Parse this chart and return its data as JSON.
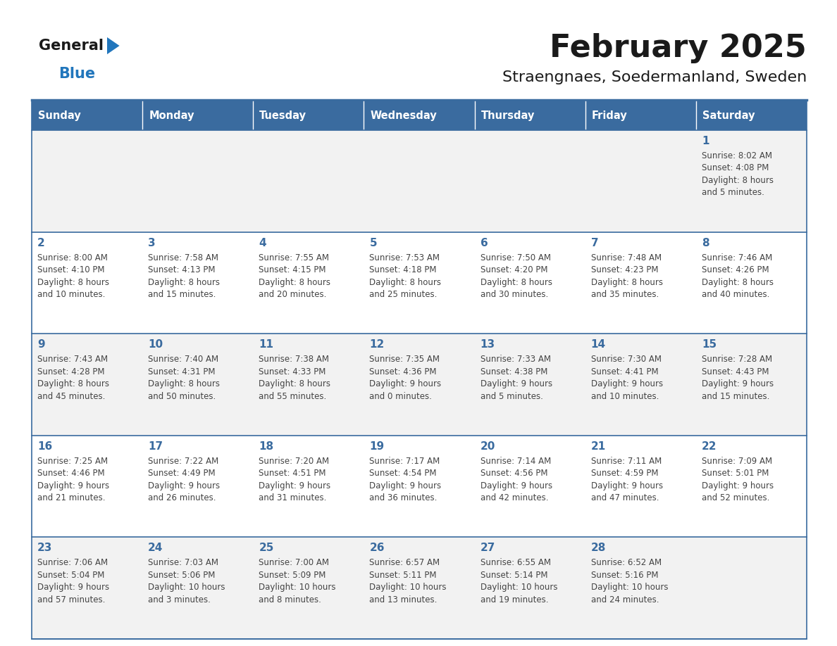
{
  "title": "February 2025",
  "subtitle": "Straengnaes, Soedermanland, Sweden",
  "days_of_week": [
    "Sunday",
    "Monday",
    "Tuesday",
    "Wednesday",
    "Thursday",
    "Friday",
    "Saturday"
  ],
  "header_bg_color": "#3a6b9f",
  "header_text_color": "#ffffff",
  "row_bg_colors": [
    "#f2f2f2",
    "#ffffff",
    "#f2f2f2",
    "#ffffff",
    "#f2f2f2"
  ],
  "day_number_color": "#3a6b9f",
  "info_text_color": "#444444",
  "grid_line_color": "#3a6b9f",
  "logo_general_color": "#1a1a1a",
  "logo_blue_color": "#2176bc",
  "logo_triangle_color": "#2176bc",
  "title_color": "#1a1a1a",
  "subtitle_color": "#1a1a1a",
  "calendar_data": [
    [
      {
        "day": null,
        "sunrise": null,
        "sunset": null,
        "daylight": null
      },
      {
        "day": null,
        "sunrise": null,
        "sunset": null,
        "daylight": null
      },
      {
        "day": null,
        "sunrise": null,
        "sunset": null,
        "daylight": null
      },
      {
        "day": null,
        "sunrise": null,
        "sunset": null,
        "daylight": null
      },
      {
        "day": null,
        "sunrise": null,
        "sunset": null,
        "daylight": null
      },
      {
        "day": null,
        "sunrise": null,
        "sunset": null,
        "daylight": null
      },
      {
        "day": 1,
        "sunrise": "8:02 AM",
        "sunset": "4:08 PM",
        "daylight": "8 hours and 5 minutes."
      }
    ],
    [
      {
        "day": 2,
        "sunrise": "8:00 AM",
        "sunset": "4:10 PM",
        "daylight": "8 hours and 10 minutes."
      },
      {
        "day": 3,
        "sunrise": "7:58 AM",
        "sunset": "4:13 PM",
        "daylight": "8 hours and 15 minutes."
      },
      {
        "day": 4,
        "sunrise": "7:55 AM",
        "sunset": "4:15 PM",
        "daylight": "8 hours and 20 minutes."
      },
      {
        "day": 5,
        "sunrise": "7:53 AM",
        "sunset": "4:18 PM",
        "daylight": "8 hours and 25 minutes."
      },
      {
        "day": 6,
        "sunrise": "7:50 AM",
        "sunset": "4:20 PM",
        "daylight": "8 hours and 30 minutes."
      },
      {
        "day": 7,
        "sunrise": "7:48 AM",
        "sunset": "4:23 PM",
        "daylight": "8 hours and 35 minutes."
      },
      {
        "day": 8,
        "sunrise": "7:46 AM",
        "sunset": "4:26 PM",
        "daylight": "8 hours and 40 minutes."
      }
    ],
    [
      {
        "day": 9,
        "sunrise": "7:43 AM",
        "sunset": "4:28 PM",
        "daylight": "8 hours and 45 minutes."
      },
      {
        "day": 10,
        "sunrise": "7:40 AM",
        "sunset": "4:31 PM",
        "daylight": "8 hours and 50 minutes."
      },
      {
        "day": 11,
        "sunrise": "7:38 AM",
        "sunset": "4:33 PM",
        "daylight": "8 hours and 55 minutes."
      },
      {
        "day": 12,
        "sunrise": "7:35 AM",
        "sunset": "4:36 PM",
        "daylight": "9 hours and 0 minutes."
      },
      {
        "day": 13,
        "sunrise": "7:33 AM",
        "sunset": "4:38 PM",
        "daylight": "9 hours and 5 minutes."
      },
      {
        "day": 14,
        "sunrise": "7:30 AM",
        "sunset": "4:41 PM",
        "daylight": "9 hours and 10 minutes."
      },
      {
        "day": 15,
        "sunrise": "7:28 AM",
        "sunset": "4:43 PM",
        "daylight": "9 hours and 15 minutes."
      }
    ],
    [
      {
        "day": 16,
        "sunrise": "7:25 AM",
        "sunset": "4:46 PM",
        "daylight": "9 hours and 21 minutes."
      },
      {
        "day": 17,
        "sunrise": "7:22 AM",
        "sunset": "4:49 PM",
        "daylight": "9 hours and 26 minutes."
      },
      {
        "day": 18,
        "sunrise": "7:20 AM",
        "sunset": "4:51 PM",
        "daylight": "9 hours and 31 minutes."
      },
      {
        "day": 19,
        "sunrise": "7:17 AM",
        "sunset": "4:54 PM",
        "daylight": "9 hours and 36 minutes."
      },
      {
        "day": 20,
        "sunrise": "7:14 AM",
        "sunset": "4:56 PM",
        "daylight": "9 hours and 42 minutes."
      },
      {
        "day": 21,
        "sunrise": "7:11 AM",
        "sunset": "4:59 PM",
        "daylight": "9 hours and 47 minutes."
      },
      {
        "day": 22,
        "sunrise": "7:09 AM",
        "sunset": "5:01 PM",
        "daylight": "9 hours and 52 minutes."
      }
    ],
    [
      {
        "day": 23,
        "sunrise": "7:06 AM",
        "sunset": "5:04 PM",
        "daylight": "9 hours and 57 minutes."
      },
      {
        "day": 24,
        "sunrise": "7:03 AM",
        "sunset": "5:06 PM",
        "daylight": "10 hours and 3 minutes."
      },
      {
        "day": 25,
        "sunrise": "7:00 AM",
        "sunset": "5:09 PM",
        "daylight": "10 hours and 8 minutes."
      },
      {
        "day": 26,
        "sunrise": "6:57 AM",
        "sunset": "5:11 PM",
        "daylight": "10 hours and 13 minutes."
      },
      {
        "day": 27,
        "sunrise": "6:55 AM",
        "sunset": "5:14 PM",
        "daylight": "10 hours and 19 minutes."
      },
      {
        "day": 28,
        "sunrise": "6:52 AM",
        "sunset": "5:16 PM",
        "daylight": "10 hours and 24 minutes."
      },
      {
        "day": null,
        "sunrise": null,
        "sunset": null,
        "daylight": null
      }
    ]
  ]
}
